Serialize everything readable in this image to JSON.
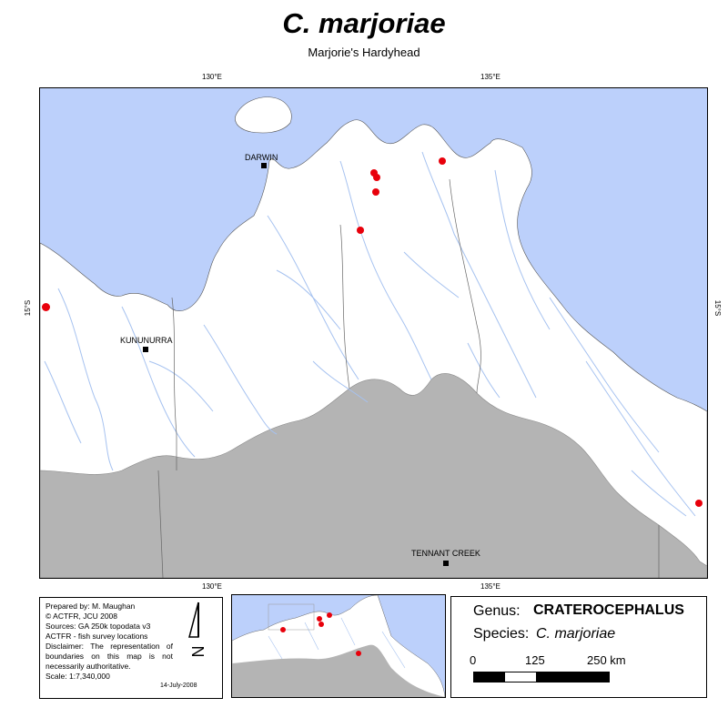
{
  "title": "C. marjoriae",
  "subtitle": "Marjorie's Hardyhead",
  "grid_labels": {
    "top_left": "130°E",
    "top_right": "135°E",
    "bottom_left": "130°E",
    "bottom_right": "135°E",
    "left": "15°S",
    "right": "15°S"
  },
  "places": {
    "darwin": "DARWIN",
    "kununurra": "KUNUNURRA",
    "tennant_creek": "TENNANT CREEK"
  },
  "info": {
    "lines": [
      "Prepared by: M. Maughan",
      "© ACTFR, JCU 2008",
      "Sources: GA 250k topodata v3",
      "ACTFR - fish survey locations",
      "Disclaimer: The representation of boundaries on this map is not necessarily authoritative.",
      "Scale: 1:7,340,000"
    ],
    "date": "14-July-2008"
  },
  "legend": {
    "genus_label": "Genus:",
    "genus_value": "CRATEROCEPHALUS",
    "species_label": "Species:",
    "species_value": "C. marjoriae",
    "scale_ticks": [
      "0",
      "125",
      "250 km"
    ]
  },
  "colors": {
    "sea": "#bcd0fb",
    "land": "#ffffff",
    "outside_area": "#b4b4b4",
    "rivers": "#a6c2f0",
    "points": "#e8000b"
  }
}
